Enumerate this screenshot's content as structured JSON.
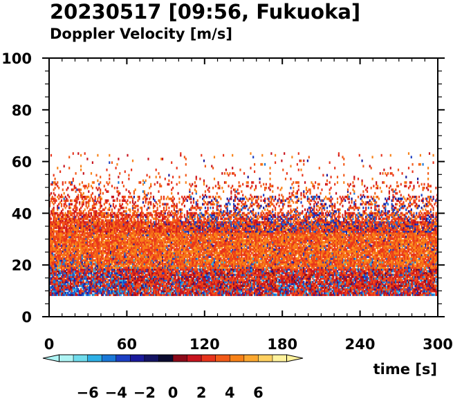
{
  "title": "20230517 [09:56, Fukuoka]",
  "subtitle": "Doppler Velocity [m/s]",
  "chart_data": {
    "type": "heatmap",
    "xlabel": "time [s]",
    "ylabel": "",
    "xlim": [
      0,
      300
    ],
    "ylim": [
      0,
      100
    ],
    "xticks": [
      0,
      60,
      120,
      180,
      240,
      300
    ],
    "yticks": [
      0,
      20,
      40,
      60,
      80,
      100
    ],
    "data_height_range": [
      8,
      63
    ],
    "typical_layers": [
      {
        "height_range": [
          8,
          24
        ],
        "velocity": -4,
        "note": "negative (blue) patches, strongest at t < 60 s"
      },
      {
        "height_range": [
          8,
          36
        ],
        "velocity": 2.5,
        "note": "dense positive (red-orange) echoes"
      },
      {
        "height_range": [
          20,
          30
        ],
        "velocity": 4,
        "note": "orange-yellow band"
      },
      {
        "height_range": [
          36,
          60
        ],
        "velocity": 3,
        "note": "sparse echoes"
      }
    ],
    "colorbar": {
      "range": [
        -8,
        8
      ],
      "tick_labels": [
        "−6",
        "−4",
        "−2",
        "0",
        "2",
        "4",
        "6"
      ],
      "tick_values": [
        -6,
        -4,
        -2,
        0,
        2,
        4,
        6
      ],
      "colors": [
        "#aef4f4",
        "#6fdcec",
        "#2eb0e6",
        "#1a78d8",
        "#1c3fc4",
        "#1a1a9c",
        "#141464",
        "#0c0c30",
        "#8c0a1a",
        "#c8141e",
        "#e8341c",
        "#f25a18",
        "#f88218",
        "#fca830",
        "#fed060",
        "#fff29c"
      ]
    }
  }
}
